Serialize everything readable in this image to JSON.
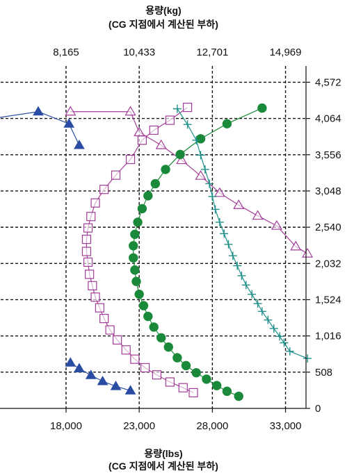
{
  "chart_data": {
    "type": "scatter",
    "title_top": [
      "용량(kg)",
      "(CG 지점에서 계산된 부하)"
    ],
    "title_bottom": [
      "용량(lbs)",
      "(CG 지점에서 계산된 부하)"
    ],
    "top_ticks": [
      "8,165",
      "10,433",
      "12,701",
      "14,969"
    ],
    "top_tick_values": [
      18000,
      23000,
      28000,
      33000
    ],
    "bottom_ticks": [
      "18,000",
      "23,000",
      "28,000",
      "33,000"
    ],
    "bottom_tick_values": [
      18000,
      23000,
      28000,
      33000
    ],
    "right_ticks": [
      "0",
      "508",
      "1,016",
      "1,524",
      "2,032",
      "2,540",
      "3,048",
      "3,556",
      "4,064",
      "4,572"
    ],
    "right_tick_values": [
      0,
      508,
      1016,
      1524,
      2032,
      2540,
      3048,
      3556,
      4064,
      4572
    ],
    "xlim": [
      13200,
      34400
    ],
    "ylim": [
      0,
      4800
    ],
    "grid": true,
    "series": [
      {
        "marker": "triangle-filled",
        "color": "#2a4ca3",
        "points": [
          [
            10900,
            4000
          ],
          [
            16100,
            4160
          ],
          [
            18200,
            3990
          ],
          [
            18900,
            3690
          ],
          [
            18300,
            640
          ],
          [
            18900,
            560
          ],
          [
            19700,
            465
          ],
          [
            20500,
            380
          ],
          [
            21400,
            310
          ],
          [
            22400,
            250
          ]
        ]
      },
      {
        "marker": "triangle-open",
        "color": "#a23b96",
        "points": [
          [
            18300,
            4160
          ],
          [
            22400,
            4160
          ],
          [
            23000,
            3870
          ],
          [
            24500,
            3690
          ],
          [
            25900,
            3480
          ],
          [
            27200,
            3260
          ],
          [
            28500,
            3020
          ],
          [
            29800,
            2850
          ],
          [
            31100,
            2700
          ],
          [
            32400,
            2560
          ],
          [
            33700,
            2270
          ],
          [
            34500,
            2170
          ]
        ]
      },
      {
        "marker": "square-open",
        "color": "#a23b96",
        "points": [
          [
            26300,
            4220
          ],
          [
            25100,
            4040
          ],
          [
            24000,
            3900
          ],
          [
            23200,
            3760
          ],
          [
            22400,
            3490
          ],
          [
            21400,
            3270
          ],
          [
            20600,
            3070
          ],
          [
            20000,
            2880
          ],
          [
            19700,
            2690
          ],
          [
            19500,
            2530
          ],
          [
            19400,
            2370
          ],
          [
            19400,
            2200
          ],
          [
            19500,
            2050
          ],
          [
            19600,
            1880
          ],
          [
            19800,
            1720
          ],
          [
            20000,
            1560
          ],
          [
            20300,
            1410
          ],
          [
            20600,
            1260
          ],
          [
            21000,
            1100
          ],
          [
            21500,
            960
          ],
          [
            22100,
            820
          ],
          [
            22700,
            690
          ],
          [
            23400,
            570
          ],
          [
            24200,
            470
          ],
          [
            25100,
            370
          ],
          [
            26000,
            290
          ],
          [
            26700,
            220
          ]
        ]
      },
      {
        "marker": "circle-filled",
        "color": "#1a8a3a",
        "points": [
          [
            31400,
            4210
          ],
          [
            29000,
            3990
          ],
          [
            27200,
            3780
          ],
          [
            25800,
            3560
          ],
          [
            24800,
            3350
          ],
          [
            24100,
            3150
          ],
          [
            23600,
            2980
          ],
          [
            23200,
            2800
          ],
          [
            22900,
            2610
          ],
          [
            22700,
            2440
          ],
          [
            22600,
            2280
          ],
          [
            22600,
            2110
          ],
          [
            22700,
            1940
          ],
          [
            22800,
            1780
          ],
          [
            23000,
            1600
          ],
          [
            23300,
            1440
          ],
          [
            23600,
            1290
          ],
          [
            24000,
            1140
          ],
          [
            24500,
            990
          ],
          [
            25000,
            860
          ],
          [
            25600,
            710
          ],
          [
            26200,
            600
          ],
          [
            26900,
            500
          ],
          [
            27600,
            410
          ],
          [
            28300,
            320
          ],
          [
            29000,
            240
          ],
          [
            29800,
            170
          ]
        ]
      },
      {
        "marker": "plus",
        "color": "#1f8f8a",
        "points": [
          [
            25600,
            4200
          ],
          [
            26300,
            3980
          ],
          [
            26900,
            3760
          ],
          [
            27200,
            3550
          ],
          [
            27500,
            3350
          ],
          [
            27800,
            3150
          ],
          [
            28000,
            2970
          ],
          [
            28200,
            2790
          ],
          [
            28500,
            2610
          ],
          [
            28800,
            2450
          ],
          [
            29100,
            2300
          ],
          [
            29400,
            2140
          ],
          [
            29700,
            2000
          ],
          [
            30000,
            1860
          ],
          [
            30300,
            1730
          ],
          [
            30700,
            1600
          ],
          [
            31100,
            1470
          ],
          [
            31400,
            1360
          ],
          [
            31800,
            1240
          ],
          [
            32200,
            1120
          ],
          [
            32600,
            1010
          ],
          [
            32900,
            920
          ],
          [
            33300,
            800
          ],
          [
            34500,
            700
          ]
        ]
      }
    ]
  }
}
